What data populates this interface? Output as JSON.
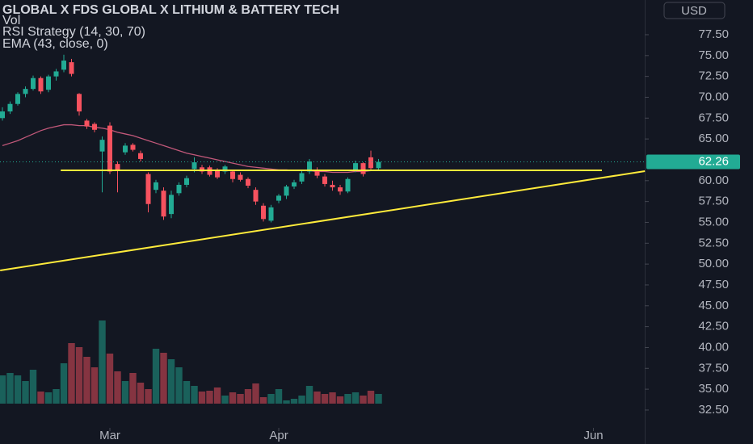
{
  "chart_data": {
    "type": "candlestick",
    "title": "GLOBAL X FDS GLOBAL X LITHIUM & BATTERY TECH",
    "indicators": [
      "Vol",
      "RSI Strategy (14, 30, 70)",
      "EMA (43, close, 0)"
    ],
    "currency": "USD",
    "up_color": "#22ab94",
    "down_color": "#f7525f",
    "open": [
      67.5,
      68.3,
      69.2,
      70.4,
      71,
      72.3,
      70.9,
      72.5,
      73.3,
      74.2,
      70.4,
      67.2,
      66.8,
      63.5,
      66.6,
      62,
      63.4,
      64.3,
      63.3,
      60.8,
      58.9,
      58.8,
      56,
      58.5,
      59.5,
      61.4,
      61.6,
      61.6,
      61.2,
      61.1,
      61.1,
      60.7,
      60.2,
      58.9,
      57,
      55.2,
      57.6,
      58.2,
      59.3,
      59.9,
      61.1,
      61.3,
      60.5,
      59.5,
      59.2,
      58.7,
      61.3,
      62.1,
      62.8,
      61.5
    ],
    "high": [
      68.8,
      69.5,
      70.6,
      71.3,
      72.6,
      72.5,
      72.7,
      73.4,
      75.1,
      74.6,
      70.5,
      67.4,
      67,
      65.3,
      67,
      62.3,
      64.5,
      64.5,
      63.6,
      61,
      60.1,
      59.2,
      58.8,
      59.8,
      60.6,
      62.8,
      61.9,
      61.8,
      61.5,
      61.9,
      61.3,
      61,
      60.4,
      59.2,
      57.3,
      57.1,
      58.4,
      59.5,
      60.1,
      61.2,
      62.6,
      61.6,
      60.8,
      60,
      59.5,
      60.4,
      62.4,
      62.2,
      63.6,
      62.6
    ],
    "low": [
      67.2,
      68,
      69,
      70,
      70.8,
      70.4,
      70.6,
      72,
      73,
      72.5,
      67.8,
      66.2,
      65.8,
      58.6,
      60.8,
      58.6,
      63.1,
      63.5,
      62.3,
      56.2,
      58.5,
      55.3,
      55.5,
      58.2,
      59.2,
      61,
      60.8,
      60.5,
      60.2,
      60.8,
      59.8,
      59.9,
      59.1,
      57.1,
      55.1,
      55,
      57.3,
      57.8,
      59,
      59.6,
      60.8,
      60.3,
      59.3,
      58.8,
      58.3,
      58.5,
      61,
      60.5,
      61.2,
      61.2
    ],
    "close": [
      68.3,
      69.2,
      70.4,
      71,
      72.3,
      70.7,
      72.5,
      73.1,
      74.4,
      72.8,
      68.3,
      66.5,
      66.1,
      64.9,
      61.1,
      61.3,
      64.2,
      63.7,
      62.6,
      57.2,
      59.8,
      55.7,
      58.3,
      59.5,
      60.3,
      62.2,
      61.1,
      60.7,
      60.4,
      61.7,
      60.2,
      60.1,
      59.4,
      57.5,
      55.4,
      56.8,
      58.2,
      59.3,
      59.8,
      60.9,
      62.3,
      60.6,
      59.6,
      59.2,
      58.7,
      60.2,
      62.1,
      60.8,
      61.5,
      62.26
    ],
    "volume": [
      35,
      38,
      35,
      28,
      42,
      15,
      14,
      18,
      50,
      75,
      70,
      58,
      45,
      103,
      62,
      40,
      28,
      38,
      26,
      18,
      68,
      63,
      55,
      45,
      28,
      22,
      15,
      16,
      20,
      10,
      14,
      12,
      18,
      25,
      8,
      12,
      18,
      4,
      6,
      10,
      22,
      15,
      12,
      14,
      9,
      12,
      14,
      10,
      16,
      12
    ],
    "ema": {
      "color": "#c2587a",
      "values": [
        64.2,
        64.5,
        64.8,
        65.2,
        65.6,
        66,
        66.3,
        66.5,
        66.7,
        66.7,
        66.6,
        66.6,
        66.4,
        66.3,
        66.1,
        65.8,
        65.6,
        65.4,
        65.1,
        64.8,
        64.5,
        64.2,
        63.9,
        63.6,
        63.3,
        63.1,
        62.9,
        62.7,
        62.5,
        62.3,
        62.1,
        61.9,
        61.7,
        61.6,
        61.5,
        61.4,
        61.3,
        61.3,
        61.2,
        61.2,
        61.2,
        61.1,
        61.1,
        61,
        61,
        61,
        61.1,
        61.1,
        61.2,
        61.3
      ]
    },
    "lines": [
      {
        "color": "#ffeb3b",
        "x": [
          7.6,
          78.1
        ],
        "values": [
          61.24,
          61.24
        ]
      },
      {
        "color": "#ffeb3b",
        "x": [
          -0.3,
          83.7
        ],
        "values": [
          49.24,
          61.14
        ]
      }
    ],
    "last_price": 62.26,
    "xlim": [
      -0.316,
      83.68
    ],
    "xticks": [
      {
        "value": 14,
        "label": "Mar"
      },
      {
        "value": 36,
        "label": "Apr"
      },
      {
        "value": 77,
        "label": "Jun"
      }
    ],
    "ylim": [
      28.43,
      81.66
    ],
    "yticks": [
      {
        "value": 77.5,
        "label": "77.50"
      },
      {
        "value": 75,
        "label": "75.00"
      },
      {
        "value": 72.5,
        "label": "72.50"
      },
      {
        "value": 70,
        "label": "70.00"
      },
      {
        "value": 67.5,
        "label": "67.50"
      },
      {
        "value": 65,
        "label": "65.00"
      },
      {
        "value": 60,
        "label": "60.00"
      },
      {
        "value": 57.5,
        "label": "57.50"
      },
      {
        "value": 55,
        "label": "55.00"
      },
      {
        "value": 52.5,
        "label": "52.50"
      },
      {
        "value": 50,
        "label": "50.00"
      },
      {
        "value": 47.5,
        "label": "47.50"
      },
      {
        "value": 45,
        "label": "45.00"
      },
      {
        "value": 42.5,
        "label": "42.50"
      },
      {
        "value": 40,
        "label": "40.00"
      },
      {
        "value": 37.5,
        "label": "37.50"
      },
      {
        "value": 35,
        "label": "35.00"
      },
      {
        "value": 32.5,
        "label": "32.50"
      }
    ]
  }
}
